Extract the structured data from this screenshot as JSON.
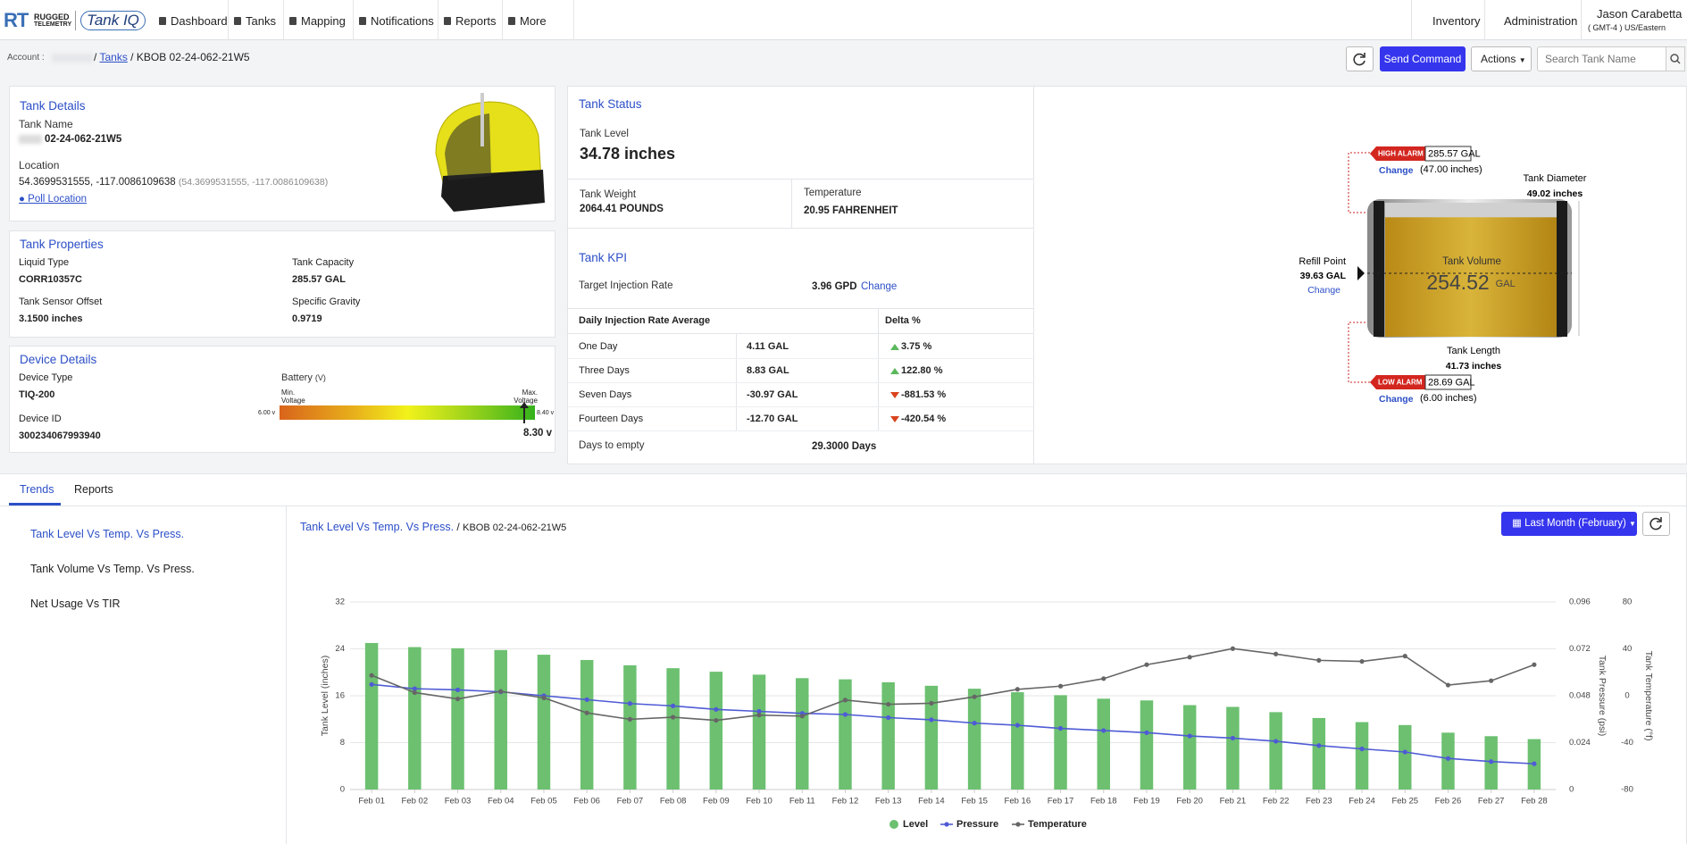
{
  "nav": {
    "brand_mark": "RT",
    "brand_top": "RUGGED",
    "brand_bottom": "TELEMETRY",
    "product": "Tank IQ",
    "items": [
      "Dashboard",
      "Tanks",
      "Mapping",
      "Notifications",
      "Reports",
      "More"
    ],
    "right": [
      "Inventory",
      "Administration"
    ],
    "user": "Jason Carabetta",
    "timezone": "( GMT-4 ) US/Eastern"
  },
  "toolbar": {
    "account": "Account :",
    "separator": "/",
    "crumbs": [
      "Tanks",
      "KBOB 02-24-062-21W5"
    ],
    "send_command": "Send Command",
    "actions": "Actions",
    "search_placeholder": "Search Tank Name"
  },
  "tank_details": {
    "title": "Tank Details",
    "name_label": "Tank Name",
    "name": "02-24-062-21W5",
    "location_label": "Location",
    "location": "54.3699531555, -117.0086109638",
    "location_raw": "(54.3699531555, -117.0086109638)",
    "poll": "Poll Location"
  },
  "tank_properties": {
    "title": "Tank Properties",
    "fields": [
      {
        "label": "Liquid Type",
        "value": "CORR10357C"
      },
      {
        "label": "Tank Capacity",
        "value": "285.57 GAL"
      },
      {
        "label": "Tank Sensor Offset",
        "value": "3.1500 inches"
      },
      {
        "label": "Specific Gravity",
        "value": "0.9719"
      }
    ]
  },
  "device_details": {
    "title": "Device Details",
    "fields": [
      {
        "label": "Device Type",
        "value": "TIQ-200"
      },
      {
        "label": "Device ID",
        "value": "300234067993940"
      }
    ],
    "battery": {
      "label": "Battery",
      "unit": "(V)",
      "min_caption": "Min. Voltage",
      "max_caption": "Max. Voltage",
      "min": 6,
      "min_label": "6.00 v",
      "max": 8.4,
      "max_label": "8.40 v",
      "value": 8.3,
      "value_label": "8.30 v"
    }
  },
  "tank_status": {
    "title": "Tank Status",
    "level_label": "Tank Level",
    "level": "34.78 inches",
    "weight_label": "Tank Weight",
    "weight": "2064.41 POUNDS",
    "temperature_label": "Temperature",
    "temperature": "20.95 FAHRENHEIT"
  },
  "tank_kpi": {
    "title": "Tank KPI",
    "target_label": "Target Injection Rate",
    "target": "3.96 GPD",
    "change": "Change",
    "headers": [
      "Daily Injection Rate Average",
      "Delta %"
    ],
    "rows": [
      {
        "period": "One Day",
        "average": "4.11 GAL",
        "delta": "3.75 %",
        "trend": "up"
      },
      {
        "period": "Three Days",
        "average": "8.83 GAL",
        "delta": "122.80 %",
        "trend": "up"
      },
      {
        "period": "Seven Days",
        "average": "-30.97 GAL",
        "delta": "-881.53 %",
        "trend": "down"
      },
      {
        "period": "Fourteen Days",
        "average": "-12.70 GAL",
        "delta": "-420.54 %",
        "trend": "down"
      }
    ],
    "days_to_empty_label": "Days to empty",
    "days_to_empty": "29.3000 Days"
  },
  "tank_diagram": {
    "high_alarm": {
      "tag": "HIGH ALARM",
      "value": 285.57,
      "unit": "GAL",
      "change": "Change",
      "height": "(47.00 inches)"
    },
    "low_alarm": {
      "tag": "LOW ALARM",
      "value": 28.69,
      "unit": "GAL",
      "change": "Change",
      "height": "(6.00 inches)"
    },
    "diameter_label": "Tank Diameter",
    "diameter": "49.02 inches",
    "refill_label": "Refill Point",
    "refill": "39.63 GAL",
    "refill_change": "Change",
    "volume_label": "Tank Volume",
    "volume": 254.52,
    "volume_unit": "GAL",
    "length_label": "Tank Length",
    "length": "41.73 inches"
  },
  "tabs": [
    "Trends",
    "Reports"
  ],
  "trend_menu": [
    "Tank Level Vs Temp. Vs Press.",
    "Tank Volume Vs Temp. Vs Press.",
    "Net Usage Vs TIR"
  ],
  "trend_header": {
    "title": "Tank Level Vs Temp. Vs Press.",
    "separator": "/",
    "tank": "KBOB 02-24-062-21W5",
    "range": "Last Month (February)"
  },
  "chart": {
    "type": "combo",
    "categories": [
      "Feb 01",
      "Feb 02",
      "Feb 03",
      "Feb 04",
      "Feb 05",
      "Feb 06",
      "Feb 07",
      "Feb 08",
      "Feb 09",
      "Feb 10",
      "Feb 11",
      "Feb 12",
      "Feb 13",
      "Feb 14",
      "Feb 15",
      "Feb 16",
      "Feb 17",
      "Feb 18",
      "Feb 19",
      "Feb 20",
      "Feb 21",
      "Feb 22",
      "Feb 23",
      "Feb 24",
      "Feb 25",
      "Feb 26",
      "Feb 27",
      "Feb 28"
    ],
    "ylabel": "Tank Level (inches)",
    "y2label": "Tank Pressure (psi)",
    "y3label": "Tank Temperature (°f)",
    "ylim": [
      0,
      32
    ],
    "yticks": [
      0,
      8,
      16,
      24,
      32
    ],
    "y2lim": [
      0,
      0.096
    ],
    "y2ticks": [
      0,
      0.024,
      0.048,
      0.072,
      0.096
    ],
    "y3lim": [
      -80,
      80
    ],
    "y3ticks": [
      -80,
      -40,
      0,
      40,
      80
    ],
    "grid": true,
    "legend": "bottom",
    "series": [
      {
        "name": "Level",
        "kind": "bar",
        "axis": "y",
        "color": "#6cc070",
        "values": [
          25.0,
          24.3,
          24.1,
          23.8,
          23.0,
          22.1,
          21.2,
          20.7,
          20.1,
          19.6,
          19.0,
          18.8,
          18.3,
          17.7,
          17.2,
          16.6,
          16.1,
          15.5,
          15.2,
          14.4,
          14.1,
          13.2,
          12.2,
          11.5,
          11.0,
          9.7,
          9.1,
          8.6
        ]
      },
      {
        "name": "Pressure",
        "kind": "line",
        "axis": "y2",
        "color": "#4f5bd5",
        "values": [
          0.0538,
          0.0516,
          0.051,
          0.05,
          0.048,
          0.046,
          0.044,
          0.0428,
          0.041,
          0.04,
          0.039,
          0.0384,
          0.0368,
          0.0357,
          0.034,
          0.0329,
          0.0313,
          0.0302,
          0.0291,
          0.0274,
          0.0263,
          0.0247,
          0.0225,
          0.0208,
          0.0192,
          0.0159,
          0.0143,
          0.0132
        ]
      },
      {
        "name": "Temperature",
        "kind": "line",
        "axis": "y3",
        "color": "#666666",
        "values": [
          17.4,
          2.7,
          -2.7,
          3.7,
          -1.8,
          -14.6,
          -20.1,
          -18.3,
          -21.0,
          -16.5,
          -17.4,
          -3.7,
          -7.3,
          -6.4,
          -0.9,
          5.5,
          8.2,
          14.6,
          26.5,
          32.9,
          40.2,
          35.6,
          30.2,
          29.3,
          33.8,
          9.1,
          12.8,
          26.5
        ]
      }
    ]
  }
}
